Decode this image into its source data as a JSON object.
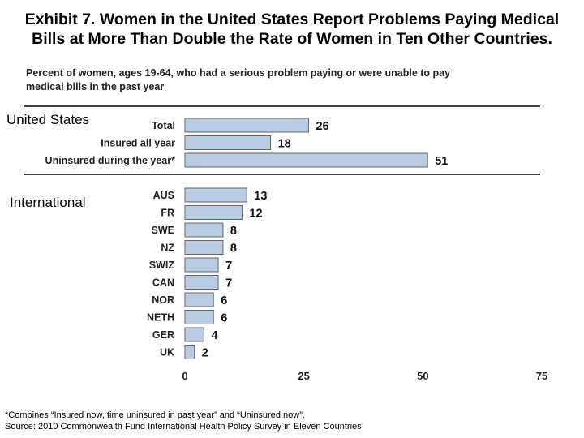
{
  "header": {
    "title_line1": "Exhibit 7. Women in the United States Report Problems Paying Medical",
    "title_line2": "Bills at More Than Double the Rate of Women in Ten Other Countries.",
    "subtitle_line1": "Percent of women, ages 19-64, who had a serious problem paying or were unable to pay",
    "subtitle_line2": "medical bills in the past year"
  },
  "groups": {
    "us_label": "United States",
    "intl_label": "International"
  },
  "chart_data": {
    "type": "bar",
    "orientation": "horizontal",
    "xlim": [
      0,
      75
    ],
    "xticks": [
      0,
      25,
      50,
      75
    ],
    "bar_color": "#b8cce4",
    "bar_edge_color": "#666666",
    "groups": [
      {
        "name": "United States",
        "categories": [
          "Total",
          "Insured all year",
          "Uninsured during the year*"
        ],
        "values": [
          26,
          18,
          51
        ]
      },
      {
        "name": "International",
        "categories": [
          "AUS",
          "FR",
          "SWE",
          "NZ",
          "SWIZ",
          "CAN",
          "NOR",
          "NETH",
          "GER",
          "UK"
        ],
        "values": [
          13,
          12,
          8,
          8,
          7,
          7,
          6,
          6,
          4,
          2
        ]
      }
    ]
  },
  "footer": {
    "note": "*Combines “Insured now, time uninsured in past year” and “Uninsured now”.",
    "source": "Source: 2010 Commonwealth Fund International Health Policy Survey in Eleven Countries"
  }
}
